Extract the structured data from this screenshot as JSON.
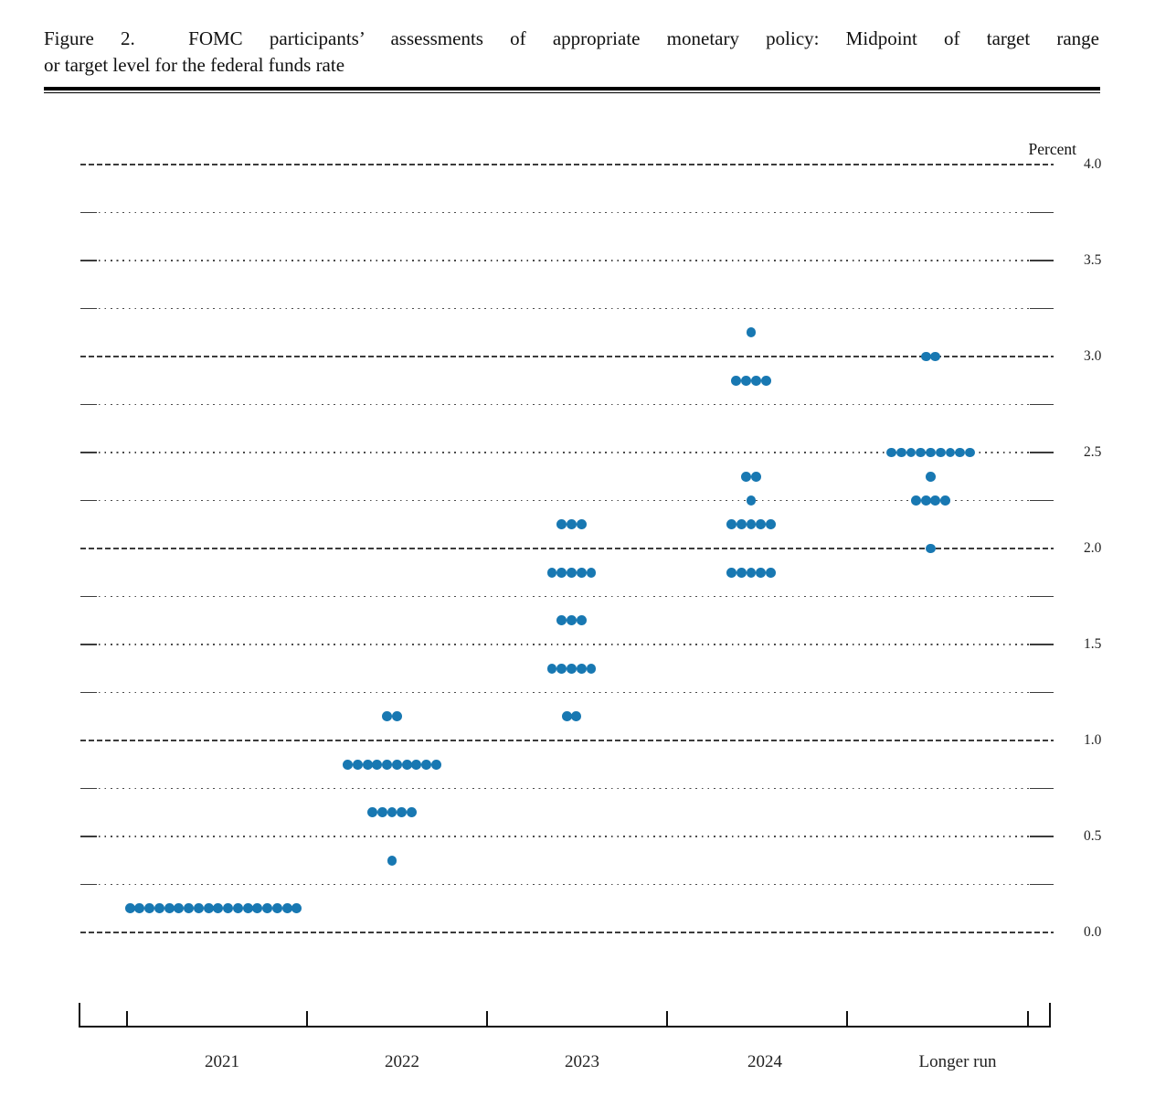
{
  "figure": {
    "title_line1": "Figure 2.  FOMC participants’ assessments of appropriate monetary policy: Midpoint of target range",
    "title_line2": "or target level for the federal funds rate"
  },
  "chart_data": {
    "type": "scatter",
    "subtype": "fomc-dot-plot",
    "title": "Figure 2. FOMC participants’ assessments of appropriate monetary policy: Midpoint of target range or target level for the federal funds rate",
    "ylabel": "Percent",
    "xlabel": "",
    "ylim": [
      0.0,
      4.0
    ],
    "ytick_labels": [
      "4.0",
      "3.5",
      "3.0",
      "2.5",
      "2.0",
      "1.5",
      "1.0",
      "0.5",
      "0.0"
    ],
    "ytick_values": [
      4.0,
      3.5,
      3.0,
      2.5,
      2.0,
      1.5,
      1.0,
      0.5,
      0.0
    ],
    "grid": {
      "major_interval": 1.0,
      "major_style": "dashed",
      "minor_interval": 0.25,
      "minor_style": "dotted"
    },
    "legend": "none",
    "dot_color": "#1878b2",
    "categories": [
      "2021",
      "2022",
      "2023",
      "2024",
      "Longer run"
    ],
    "series": [
      {
        "category": "2021",
        "dots": [
          {
            "rate": 0.125,
            "count": 18
          }
        ]
      },
      {
        "category": "2022",
        "dots": [
          {
            "rate": 1.125,
            "count": 2
          },
          {
            "rate": 0.875,
            "count": 10
          },
          {
            "rate": 0.625,
            "count": 5
          },
          {
            "rate": 0.375,
            "count": 1
          }
        ]
      },
      {
        "category": "2023",
        "dots": [
          {
            "rate": 2.125,
            "count": 3
          },
          {
            "rate": 1.875,
            "count": 5
          },
          {
            "rate": 1.625,
            "count": 3
          },
          {
            "rate": 1.375,
            "count": 5
          },
          {
            "rate": 1.125,
            "count": 2
          }
        ]
      },
      {
        "category": "2024",
        "dots": [
          {
            "rate": 3.125,
            "count": 1
          },
          {
            "rate": 2.875,
            "count": 4
          },
          {
            "rate": 2.375,
            "count": 2
          },
          {
            "rate": 2.25,
            "count": 1
          },
          {
            "rate": 2.125,
            "count": 5
          },
          {
            "rate": 1.875,
            "count": 5
          }
        ]
      },
      {
        "category": "Longer run",
        "dots": [
          {
            "rate": 3.0,
            "count": 2
          },
          {
            "rate": 2.5,
            "count": 9
          },
          {
            "rate": 2.375,
            "count": 1
          },
          {
            "rate": 2.25,
            "count": 4
          },
          {
            "rate": 2.0,
            "count": 1
          }
        ]
      }
    ]
  }
}
